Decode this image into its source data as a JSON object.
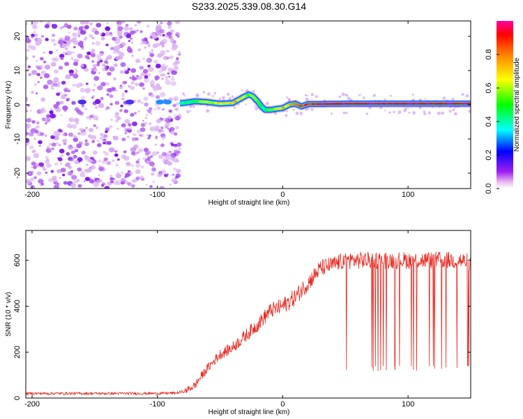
{
  "title": "S233.2025.339.08.30.G14",
  "chart_data": [
    {
      "type": "heatmap",
      "name": "spectrogram",
      "xlabel": "Height of straight line (km)",
      "ylabel": "Frequency (Hz)",
      "xlim": [
        -205,
        150
      ],
      "ylim": [
        -24.5,
        24.5
      ],
      "x_ticks": [
        -200,
        -100,
        0,
        100
      ],
      "y_ticks": [
        -20,
        -10,
        0,
        10,
        20
      ],
      "signal_trace": {
        "x": [
          -80,
          -70,
          -60,
          -50,
          -40,
          -35,
          -30,
          -27,
          -24,
          -20,
          -17,
          -14,
          -10,
          -5,
          0,
          5,
          10,
          15,
          20,
          30,
          50,
          100,
          150
        ],
        "freq": [
          0.5,
          1.0,
          0.8,
          0.3,
          0.5,
          1.5,
          2.5,
          3.0,
          2.5,
          1.0,
          -0.5,
          -1.5,
          -1.5,
          -1.2,
          -1.0,
          0.0,
          0.3,
          -0.5,
          0.2,
          0.2,
          0.3,
          0.3,
          0.3
        ],
        "amplitude": [
          0.45,
          0.5,
          0.6,
          0.65,
          0.7,
          0.75,
          0.6,
          0.55,
          0.55,
          0.5,
          0.45,
          0.5,
          0.6,
          0.65,
          0.7,
          0.75,
          0.8,
          0.85,
          0.9,
          0.95,
          0.95,
          0.95,
          0.95
        ]
      },
      "noise_region_x": [
        -205,
        -82
      ],
      "colorbar": {
        "label": "Normalized spectral amplitude",
        "range": [
          0,
          1
        ],
        "ticks": [
          "0.0",
          "0.2",
          "0.4",
          "0.6",
          "0.8"
        ]
      }
    },
    {
      "type": "line",
      "name": "snr",
      "xlabel": "Height of straight line (km)",
      "ylabel": "SNR (10 * v/v)",
      "xlim": [
        -205,
        150
      ],
      "ylim": [
        0,
        730
      ],
      "x_ticks": [
        -200,
        -100,
        0,
        100
      ],
      "y_ticks": [
        0,
        200,
        400,
        600
      ],
      "series": [
        {
          "name": "SNR",
          "color": "#e8271e",
          "x": [
            -205,
            -180,
            -150,
            -120,
            -100,
            -85,
            -78,
            -70,
            -65,
            -60,
            -50,
            -40,
            -30,
            -20,
            -10,
            0,
            10,
            20,
            30,
            40,
            50,
            60,
            80,
            100,
            120,
            140,
            150
          ],
          "y": [
            20,
            20,
            20,
            20,
            20,
            22,
            30,
            55,
            95,
            130,
            190,
            220,
            270,
            320,
            380,
            400,
            440,
            500,
            565,
            580,
            600,
            600,
            600,
            600,
            600,
            600,
            590
          ],
          "noise_amplitude": 25,
          "dropout_region_x": [
            49,
            150
          ],
          "dropout_level": 130
        }
      ]
    }
  ]
}
